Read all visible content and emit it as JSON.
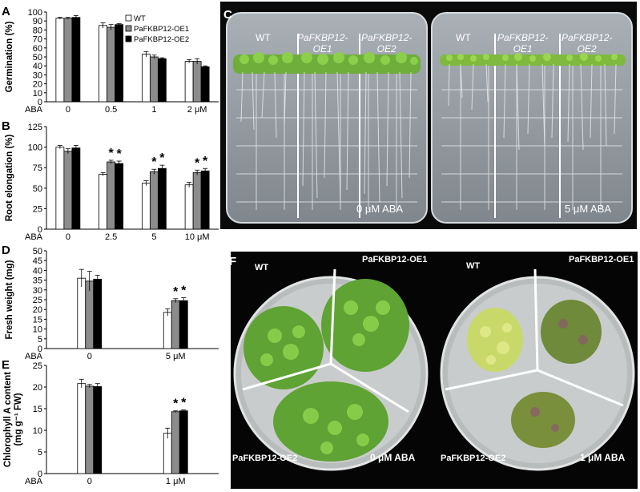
{
  "colors": {
    "WT": "#ffffff",
    "PaFKBP12-OE1": "#8c8c8c",
    "PaFKBP12-OE2": "#000000"
  },
  "legend": [
    "WT",
    "PaFKBP12-OE1",
    "PaFKBP12-OE2"
  ],
  "chart_data": [
    {
      "panel": "A",
      "type": "bar",
      "ylabel": "Germination (%)",
      "ylim": [
        0,
        100
      ],
      "yticks": [
        0,
        10,
        20,
        30,
        40,
        50,
        60,
        70,
        80,
        90,
        100
      ],
      "xprefix": "ABA",
      "categories": [
        "0",
        "0.5",
        "1",
        "2 μM"
      ],
      "series": [
        {
          "name": "WT",
          "values": [
            93,
            85,
            53,
            45
          ],
          "errors": [
            1,
            3,
            3,
            2
          ]
        },
        {
          "name": "PaFKBP12-OE1",
          "values": [
            93,
            83,
            50,
            45
          ],
          "errors": [
            1,
            3,
            2,
            3
          ]
        },
        {
          "name": "PaFKBP12-OE2",
          "values": [
            94,
            86,
            48,
            39
          ],
          "errors": [
            2,
            1,
            1,
            1
          ]
        }
      ],
      "stars": []
    },
    {
      "panel": "B",
      "type": "bar",
      "ylabel": "Root elongation (%)",
      "ylim": [
        0,
        120
      ],
      "yticks": [
        0,
        25,
        50,
        75,
        100,
        125
      ],
      "xprefix": "ABA",
      "categories": [
        "0",
        "2.5",
        "5",
        "10 μM"
      ],
      "series": [
        {
          "name": "WT",
          "values": [
            100,
            67,
            56,
            54
          ],
          "errors": [
            2,
            2,
            3,
            3
          ]
        },
        {
          "name": "PaFKBP12-OE1",
          "values": [
            95,
            82,
            70,
            69
          ],
          "errors": [
            3,
            2,
            3,
            3
          ]
        },
        {
          "name": "PaFKBP12-OE2",
          "values": [
            99,
            80,
            74,
            71
          ],
          "errors": [
            3,
            3,
            4,
            3
          ]
        }
      ],
      "stars": [
        [
          1,
          1
        ],
        [
          1,
          2
        ],
        [
          2,
          1
        ],
        [
          2,
          2
        ],
        [
          3,
          1
        ],
        [
          3,
          2
        ]
      ]
    },
    {
      "panel": "D",
      "type": "bar",
      "ylabel": "Fresh weight (mg)",
      "ylim": [
        0,
        50
      ],
      "yticks": [
        0,
        5,
        10,
        15,
        20,
        25,
        30,
        35,
        40,
        45,
        50
      ],
      "xprefix": "ABA",
      "categories": [
        "0",
        "5 μM"
      ],
      "series": [
        {
          "name": "WT",
          "values": [
            36,
            18.5
          ],
          "errors": [
            4.5,
            1.8
          ]
        },
        {
          "name": "PaFKBP12-OE1",
          "values": [
            34.5,
            24.5
          ],
          "errors": [
            5,
            1
          ]
        },
        {
          "name": "PaFKBP12-OE2",
          "values": [
            35.5,
            24.5
          ],
          "errors": [
            2,
            1.5
          ]
        }
      ],
      "stars": [
        [
          1,
          1
        ],
        [
          1,
          2
        ]
      ]
    },
    {
      "panel": "E",
      "type": "bar",
      "ylabel": "Chlorophyll A content (mg g⁻¹ FW)",
      "ylim": [
        0,
        25
      ],
      "yticks": [
        0,
        5,
        10,
        15,
        20,
        25
      ],
      "xprefix": "ABA",
      "categories": [
        "0",
        "1 μM"
      ],
      "series": [
        {
          "name": "WT",
          "values": [
            20.8,
            9.3
          ],
          "errors": [
            1,
            1.2
          ]
        },
        {
          "name": "PaFKBP12-OE1",
          "values": [
            20.2,
            14.3
          ],
          "errors": [
            0.4,
            0.2
          ]
        },
        {
          "name": "PaFKBP12-OE2",
          "values": [
            20.1,
            14.5
          ],
          "errors": [
            0.7,
            0.2
          ]
        }
      ],
      "stars": [
        [
          1,
          1
        ],
        [
          1,
          2
        ]
      ]
    }
  ],
  "panelC": {
    "letter": "C",
    "left": {
      "labels": [
        "WT",
        "PaFKBP12-\nOE1",
        "PaFKBP12-\nOE2"
      ],
      "treatment": "0 μM ABA"
    },
    "right": {
      "labels": [
        "WT",
        "PaFKBP12-\nOE1",
        "PaFKBP12-\nOE2"
      ],
      "treatment": "5 μM ABA"
    }
  },
  "panelF": {
    "letter": "F",
    "left": {
      "wt": "WT",
      "oe1": "PaFKBP12-OE1",
      "oe2": "PaFKBP12-OE2",
      "treatment": "0 μM ABA"
    },
    "right": {
      "wt": "WT",
      "oe1": "PaFKBP12-OE1",
      "oe2": "PaFKBP12-OE2",
      "treatment": "1 μM ABA"
    }
  }
}
